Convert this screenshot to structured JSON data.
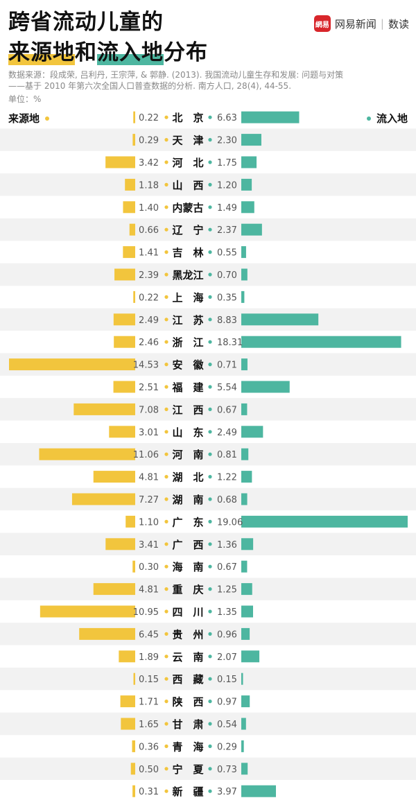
{
  "header": {
    "title_line1": "跨省流动儿童的",
    "title_line2_a": "来源地",
    "title_line2_b": "和",
    "title_line2_c": "流入地",
    "title_line2_d": "分布",
    "brand_logo_text": "網易",
    "brand_name": "网易新闻",
    "brand_sep": "|",
    "brand_section": "数读",
    "source_line1": "数据来源：段成荣, 吕利丹, 王宗萍, & 郭静. (2013). 我国流动儿童生存和发展: 问题与对策",
    "source_line2": "——基于 2010 年第六次全国人口普查数据的分析. 南方人口, 28(4), 44-55.",
    "unit": "单位：%"
  },
  "colors": {
    "origin": "#f2c53d",
    "destination": "#4db6a0",
    "stripe": "#f2f2f2"
  },
  "chart_data": {
    "type": "bar",
    "layout": "diverging-horizontal",
    "unit": "%",
    "series": [
      {
        "name": "来源地",
        "color": "#f2c53d",
        "direction": "left",
        "values": [
          0.22,
          0.29,
          3.42,
          1.18,
          1.4,
          0.66,
          1.41,
          2.39,
          0.22,
          2.49,
          2.46,
          14.53,
          2.51,
          7.08,
          3.01,
          11.06,
          4.81,
          7.27,
          1.1,
          3.41,
          0.3,
          4.81,
          10.95,
          6.45,
          1.89,
          0.15,
          1.71,
          1.65,
          0.36,
          0.5,
          0.31
        ]
      },
      {
        "name": "流入地",
        "color": "#4db6a0",
        "direction": "right",
        "values": [
          6.63,
          2.3,
          1.75,
          1.2,
          1.49,
          2.37,
          0.55,
          0.7,
          0.35,
          8.83,
          18.31,
          0.71,
          5.54,
          0.67,
          2.49,
          0.81,
          1.22,
          0.68,
          19.06,
          1.36,
          0.67,
          1.25,
          1.35,
          0.96,
          2.07,
          0.15,
          0.97,
          0.54,
          0.29,
          0.73,
          3.97
        ]
      }
    ],
    "categories": [
      "北　京",
      "天　津",
      "河　北",
      "山　西",
      "内蒙古",
      "辽　宁",
      "吉　林",
      "黑龙江",
      "上　海",
      "江　苏",
      "浙　江",
      "安　徽",
      "福　建",
      "江　西",
      "山　东",
      "河　南",
      "湖　北",
      "湖　南",
      "广　东",
      "广　西",
      "海　南",
      "重　庆",
      "四　川",
      "贵　州",
      "云　南",
      "西　藏",
      "陕　西",
      "甘　肃",
      "青　海",
      "宁　夏",
      "新　疆"
    ],
    "value_labels_left": [
      "0.22",
      "0.29",
      "3.42",
      "1.18",
      "1.40",
      "0.66",
      "1.41",
      "2.39",
      "0.22",
      "2.49",
      "2.46",
      "14.53",
      "2.51",
      "7.08",
      "3.01",
      "11.06",
      "4.81",
      "7.27",
      "1.10",
      "3.41",
      "0.30",
      "4.81",
      "10.95",
      "6.45",
      "1.89",
      "0.15",
      "1.71",
      "1.65",
      "0.36",
      "0.50",
      "0.31"
    ],
    "value_labels_right": [
      "6.63",
      "2.30",
      "1.75",
      "1.20",
      "1.49",
      "2.37",
      "0.55",
      "0.70",
      "0.35",
      "8.83",
      "18.31",
      "0.71",
      "5.54",
      "0.67",
      "2.49",
      "0.81",
      "1.22",
      "0.68",
      "19.06",
      "1.36",
      "0.67",
      "1.25",
      "1.35",
      "0.96",
      "2.07",
      "0.15",
      "0.97",
      "0.54",
      "0.29",
      "0.73",
      "3.97"
    ],
    "legend": {
      "left_label": "来源地",
      "right_label": "流入地",
      "placement": "top"
    },
    "grid": false
  }
}
